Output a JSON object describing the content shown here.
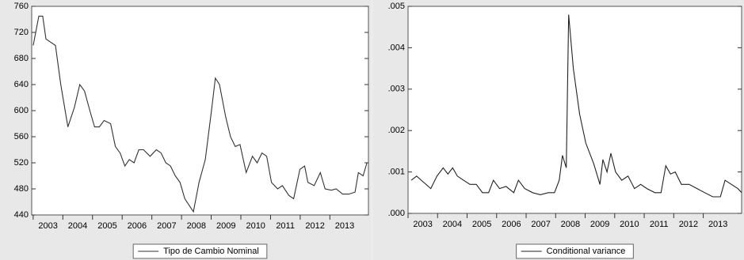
{
  "chart_data": [
    {
      "type": "line",
      "x": [
        2003.0,
        2003.19,
        2003.32,
        2003.43,
        2003.59,
        2003.75,
        2003.93,
        2004.17,
        2004.39,
        2004.57,
        2004.73,
        2004.91,
        2005.07,
        2005.23,
        2005.39,
        2005.61,
        2005.77,
        2005.93,
        2006.09,
        2006.24,
        2006.4,
        2006.56,
        2006.72,
        2006.94,
        2007.15,
        2007.31,
        2007.47,
        2007.63,
        2007.79,
        2007.95,
        2008.11,
        2008.4,
        2008.59,
        2008.8,
        2009.01,
        2009.14,
        2009.28,
        2009.49,
        2009.65,
        2009.81,
        2009.97,
        2010.18,
        2010.39,
        2010.55,
        2010.71,
        2010.87,
        2011.03,
        2011.24,
        2011.4,
        2011.62,
        2011.78,
        2011.99,
        2012.15,
        2012.26,
        2012.47,
        2012.68,
        2012.84,
        2013.05,
        2013.21,
        2013.43,
        2013.64,
        2013.85,
        2013.96,
        2014.12,
        2014.25
      ],
      "series": [
        {
          "name": "Tipo de Cambio Nominal",
          "color": "#333333",
          "values": [
            700,
            745,
            745,
            710,
            705,
            700,
            640,
            575,
            605,
            640,
            630,
            600,
            575,
            575,
            585,
            580,
            545,
            535,
            515,
            525,
            520,
            540,
            540,
            530,
            540,
            535,
            520,
            515,
            500,
            490,
            465,
            445,
            490,
            525,
            600,
            650,
            640,
            590,
            560,
            545,
            548,
            505,
            530,
            520,
            535,
            530,
            490,
            480,
            485,
            470,
            465,
            510,
            515,
            490,
            485,
            505,
            480,
            478,
            480,
            472,
            472,
            475,
            505,
            500,
            520
          ]
        }
      ],
      "xlim": [
        2002.95,
        2014.3
      ],
      "xticks": [
        2003,
        2004,
        2005,
        2006,
        2007,
        2008,
        2009,
        2010,
        2011,
        2012,
        2013
      ],
      "ylim": [
        440,
        760
      ],
      "yticks": [
        440,
        480,
        520,
        560,
        600,
        640,
        680,
        720,
        760
      ],
      "legend": "bottom"
    },
    {
      "type": "line",
      "x": [
        2003.11,
        2003.29,
        2003.45,
        2003.77,
        2003.98,
        2004.19,
        2004.35,
        2004.51,
        2004.67,
        2004.88,
        2005.1,
        2005.31,
        2005.52,
        2005.73,
        2005.89,
        2006.1,
        2006.32,
        2006.58,
        2006.74,
        2006.95,
        2007.22,
        2007.48,
        2007.75,
        2007.96,
        2008.12,
        2008.23,
        2008.36,
        2008.44,
        2008.6,
        2008.81,
        2009.02,
        2009.29,
        2009.5,
        2009.6,
        2009.74,
        2009.87,
        2010.03,
        2010.24,
        2010.45,
        2010.67,
        2010.88,
        2011.09,
        2011.36,
        2011.57,
        2011.73,
        2011.89,
        2012.05,
        2012.26,
        2012.52,
        2012.79,
        2013.05,
        2013.32,
        2013.58,
        2013.74,
        2013.95,
        2014.17,
        2014.3
      ],
      "series": [
        {
          "name": "Conditional variance",
          "color": "#222222",
          "values": [
            0.0008,
            0.0009,
            0.0008,
            0.0006,
            0.0009,
            0.0011,
            0.00095,
            0.0011,
            0.0009,
            0.0008,
            0.0007,
            0.0007,
            0.0005,
            0.0005,
            0.0008,
            0.0006,
            0.00065,
            0.0005,
            0.0008,
            0.0006,
            0.0005,
            0.00045,
            0.0005,
            0.0005,
            0.0008,
            0.0014,
            0.0011,
            0.0048,
            0.0035,
            0.0024,
            0.0017,
            0.0012,
            0.0007,
            0.0013,
            0.001,
            0.00145,
            0.001,
            0.0008,
            0.0009,
            0.0006,
            0.0007,
            0.0006,
            0.0005,
            0.0005,
            0.00115,
            0.00095,
            0.001,
            0.0007,
            0.0007,
            0.0006,
            0.0005,
            0.0004,
            0.0004,
            0.0008,
            0.0007,
            0.0006,
            0.0005
          ]
        }
      ],
      "xlim": [
        2003.0,
        2014.3
      ],
      "xticks": [
        2003,
        2004,
        2005,
        2006,
        2007,
        2008,
        2009,
        2010,
        2011,
        2012,
        2013
      ],
      "ylim": [
        0,
        0.005
      ],
      "yticks": [
        {
          "value": 0,
          "label": ".000"
        },
        {
          "value": 0.001,
          "label": ".001"
        },
        {
          "value": 0.002,
          "label": ".002"
        },
        {
          "value": 0.003,
          "label": ".003"
        },
        {
          "value": 0.004,
          "label": ".004"
        },
        {
          "value": 0.005,
          "label": ".005"
        }
      ],
      "legend": "bottom"
    }
  ]
}
